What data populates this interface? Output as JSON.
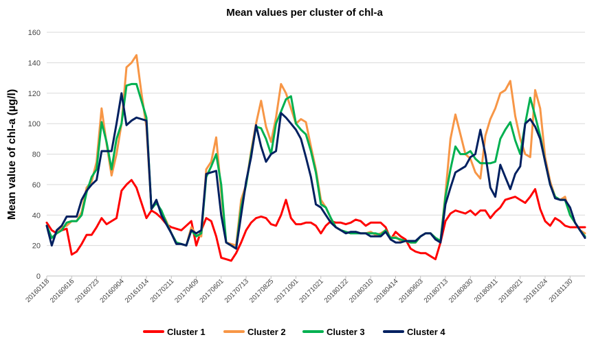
{
  "chart_data": {
    "type": "line",
    "title": "Mean values per cluster of chl-a",
    "xlabel": "",
    "ylabel": "Mean value of chl-a (µg/l)",
    "ylim": [
      0,
      160
    ],
    "yticks": [
      0,
      20,
      40,
      60,
      80,
      100,
      120,
      140,
      160
    ],
    "grid": true,
    "legend": "bottom",
    "x_tick_labels": [
      {
        "label": "20160118",
        "index": 0
      },
      {
        "label": "20160616",
        "index": 5
      },
      {
        "label": "20160723",
        "index": 10
      },
      {
        "label": "20160904",
        "index": 15
      },
      {
        "label": "20161014",
        "index": 20
      },
      {
        "label": "20170211",
        "index": 25
      },
      {
        "label": "20170409",
        "index": 30
      },
      {
        "label": "20170601",
        "index": 35
      },
      {
        "label": "20170713",
        "index": 40
      },
      {
        "label": "20170825",
        "index": 45
      },
      {
        "label": "20171001",
        "index": 50
      },
      {
        "label": "20171021",
        "index": 55
      },
      {
        "label": "20180122",
        "index": 60
      },
      {
        "label": "20180310",
        "index": 65
      },
      {
        "label": "20180414",
        "index": 70
      },
      {
        "label": "20180603",
        "index": 75
      },
      {
        "label": "20180713",
        "index": 80
      },
      {
        "label": "20180830",
        "index": 85
      },
      {
        "label": "20180911",
        "index": 90
      },
      {
        "label": "20180921",
        "index": 95
      },
      {
        "label": "20181024",
        "index": 100
      },
      {
        "label": "20181130",
        "index": 105
      }
    ],
    "n_points": 109,
    "series": [
      {
        "name": "Cluster 1",
        "color": "#ff0000",
        "values": [
          35,
          30,
          28,
          30,
          31,
          14,
          16,
          21,
          27,
          27,
          32,
          38,
          34,
          36,
          38,
          56,
          60,
          63,
          58,
          48,
          38,
          43,
          41,
          38,
          34,
          32,
          31,
          30,
          33,
          36,
          20,
          30,
          38,
          36,
          26,
          12,
          11,
          10,
          15,
          22,
          30,
          35,
          38,
          39,
          38,
          34,
          33,
          40,
          50,
          38,
          34,
          34,
          35,
          35,
          33,
          28,
          33,
          36,
          35,
          35,
          34,
          35,
          37,
          36,
          33,
          35,
          35,
          35,
          32,
          24,
          29,
          26,
          24,
          18,
          16,
          15,
          15,
          13,
          11,
          22,
          36,
          41,
          43,
          42,
          41,
          43,
          40,
          43,
          43,
          38,
          42,
          45,
          50,
          51,
          52,
          50,
          48,
          52,
          57,
          44,
          36,
          33,
          38,
          36,
          33,
          32,
          32,
          32,
          32
        ]
      },
      {
        "name": "Cluster 2",
        "color": "#f79646",
        "values": [
          33,
          25,
          28,
          32,
          33,
          36,
          36,
          42,
          58,
          62,
          75,
          110,
          87,
          66,
          80,
          100,
          137,
          140,
          145,
          120,
          98,
          44,
          49,
          42,
          36,
          28,
          22,
          21,
          20,
          32,
          27,
          26,
          70,
          75,
          91,
          55,
          22,
          21,
          20,
          50,
          60,
          82,
          100,
          115,
          98,
          88,
          104,
          126,
          120,
          110,
          100,
          103,
          101,
          85,
          70,
          50,
          45,
          38,
          32,
          30,
          29,
          28,
          29,
          28,
          28,
          29,
          27,
          28,
          30,
          25,
          26,
          23,
          23,
          22,
          22,
          26,
          28,
          28,
          25,
          23,
          54,
          90,
          106,
          93,
          80,
          77,
          68,
          64,
          92,
          103,
          110,
          120,
          122,
          128,
          105,
          90,
          80,
          78,
          122,
          110,
          78,
          62,
          52,
          50,
          52,
          40,
          35,
          30,
          28
        ]
      },
      {
        "name": "Cluster 3",
        "color": "#00b050",
        "values": [
          33,
          25,
          28,
          30,
          35,
          36,
          36,
          40,
          55,
          65,
          70,
          101,
          88,
          70,
          90,
          100,
          125,
          126,
          126,
          115,
          104,
          44,
          48,
          43,
          35,
          28,
          22,
          21,
          20,
          30,
          26,
          28,
          65,
          72,
          80,
          60,
          22,
          20,
          18,
          45,
          60,
          80,
          98,
          97,
          90,
          80,
          100,
          108,
          116,
          118,
          100,
          96,
          93,
          82,
          68,
          47,
          45,
          38,
          32,
          30,
          29,
          28,
          28,
          28,
          28,
          28,
          28,
          27,
          30,
          25,
          25,
          24,
          23,
          22,
          22,
          26,
          28,
          28,
          25,
          23,
          52,
          70,
          85,
          80,
          80,
          82,
          77,
          74,
          74,
          74,
          75,
          90,
          96,
          101,
          89,
          80,
          100,
          117,
          105,
          92,
          75,
          60,
          52,
          50,
          50,
          40,
          35,
          30,
          26
        ]
      },
      {
        "name": "Cluster 4",
        "color": "#002060",
        "values": [
          33,
          20,
          30,
          33,
          39,
          39,
          39,
          50,
          56,
          60,
          63,
          82,
          82,
          82,
          100,
          120,
          99,
          102,
          104,
          103,
          102,
          44,
          50,
          40,
          34,
          28,
          21,
          21,
          20,
          30,
          28,
          30,
          67,
          68,
          69,
          40,
          22,
          20,
          18,
          40,
          62,
          78,
          99,
          85,
          75,
          80,
          82,
          107,
          104,
          100,
          96,
          90,
          78,
          65,
          47,
          45,
          40,
          35,
          32,
          30,
          28,
          29,
          29,
          28,
          28,
          26,
          26,
          26,
          29,
          24,
          22,
          22,
          23,
          23,
          23,
          26,
          28,
          28,
          24,
          22,
          47,
          58,
          68,
          70,
          72,
          78,
          80,
          96,
          80,
          58,
          52,
          73,
          65,
          57,
          67,
          72,
          100,
          103,
          98,
          90,
          75,
          60,
          51,
          50,
          50,
          45,
          35,
          30,
          25
        ]
      }
    ]
  }
}
